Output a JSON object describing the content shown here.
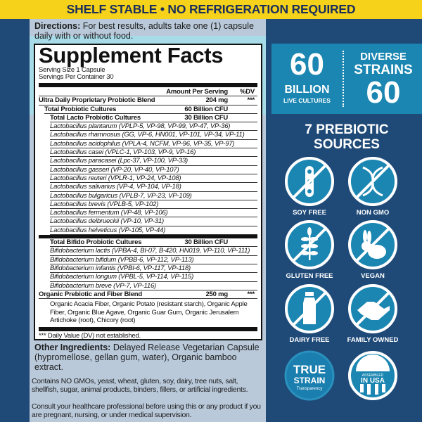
{
  "banner": "SHELF STABLE • NO REFRIGERATION REQUIRED",
  "directions": {
    "label": "Directions:",
    "text": " For best results, adults take one (1) capsule daily with or without food."
  },
  "facts": {
    "title": "Supplement Facts",
    "serving_size": "Serving Size 1 Capsule",
    "servings_per_container": "Servings Per Container 30",
    "col_amount": "Amount Per Serving",
    "col_dv": "%DV",
    "blend": {
      "name": "Ultra Daily Proprietary Probiotic Blend",
      "amount": "204 mg",
      "dv": "***"
    },
    "total": {
      "name": "Total Probiotic Cultures",
      "amount": "60 Billion CFU"
    },
    "lacto": {
      "name": "Total Lacto Probiotic Cultures",
      "amount": "30 Billion CFU",
      "strains": [
        "Lactobacillus plantarum (VPLP-5, VP-98, VP-99, VP-47, VP-36)",
        "Lactobacillus rhamnosus (GG, VP-6, HN001, VP-101, VP-34, VP-11)",
        "Lactobacillus acidophilus (VPLA-4, NCFM, VP-96, VP-35, VP-97)",
        "Lactobacillus casei (VPLC-1, VP-103, VP-9, VP-16)",
        "Lactobacillus paracasei (Lpc-37, VP-100, VP-33)",
        "Lactobacillus gasseri (VP-20, VP-40, VP-107)",
        "Lactobacillus reuteri (VPLR-1, VP-24, VP-108)",
        "Lactobacillus salivarius (VP-4, VP-104, VP-18)",
        "Lactobacillus bulgaricus (VPLB-7, VP-23, VP-109)",
        "Lactobacillus brevis (VPLB-5, VP-102)",
        "Lactobacillus fermentum (VP-48, VP-106)",
        "Lactobacillus delbrueckii (VP-10, VP-31)",
        "Lactobacillus helveticus (VP-105, VP-44)"
      ]
    },
    "bifido": {
      "name": "Total Bifido Probiotic Cultures",
      "amount": "30 Billion CFU",
      "strains": [
        "Bifidobacterium lactis (VPBA-4, BI-07, B-420, HN019, VP-110, VP-111)",
        "Bifidobacterium bifidum (VPBB-6, VP-112, VP-113)",
        "Bifidobacterium infantis (VPBI-6, VP-117, VP-118)",
        "Bifidobacterium longum (VPBL-5, VP-114, VP-115)",
        "Bifidobacterium breve (VP-7, VP-116)"
      ]
    },
    "fiber": {
      "name": "Organic Prebiotic and Fiber Blend",
      "amount": "250 mg",
      "dv": "***",
      "ingredients": "Organic Acacia Fiber, Organic Potato (resistant starch), Organic Apple Fiber, Organic Blue Agave, Organic Guar Gum, Organic Jerusalem Artichoke (root), Chicory (root)"
    },
    "footnote": "*** Daily Value (DV) not established."
  },
  "other": {
    "label": "Other Ingredients:",
    "text": " Delayed Release Vegetarian Capsule (hypromellose, gellan gum, water), Organic bamboo extract."
  },
  "contains": "Contains NO GMOs, yeast, wheat, gluten, soy, dairy, tree nuts, salt, shellfish, sugar, animal products, binders, fillers, or artificial ingredients.",
  "consult": "Consult your healthcare professional before using this or any product if you are pregnant, nursing, or under medical supervision.",
  "stats": {
    "cultures_number": "60",
    "cultures_unit": "BILLION",
    "cultures_label": "LIVE CULTURES",
    "strains_top": "DIVERSE",
    "strains_mid": "STRAINS",
    "strains_number": "60"
  },
  "prebiotic": "7 PREBIOTIC SOURCES",
  "badges": [
    {
      "label": "SOY FREE",
      "icon": "soy-icon"
    },
    {
      "label": "NON GMO",
      "icon": "dna-icon"
    },
    {
      "label": "GLUTEN FREE",
      "icon": "wheat-icon"
    },
    {
      "label": "VEGAN",
      "icon": "rabbit-icon"
    },
    {
      "label": "DAIRY FREE",
      "icon": "milk-bottle-icon"
    },
    {
      "label": "FAMILY OWNED",
      "icon": "handshake-icon"
    }
  ],
  "seals": {
    "true_strain": {
      "line1": "TRUE",
      "line2": "STRAIN",
      "line3": "Transparency"
    },
    "usa": {
      "line1": "ASSEMBLED",
      "line2": "IN USA"
    }
  },
  "colors": {
    "banner": "#f6d21a",
    "navy": "#1f4a78",
    "teal": "#1a86b1",
    "panel": "#b9c9da"
  }
}
